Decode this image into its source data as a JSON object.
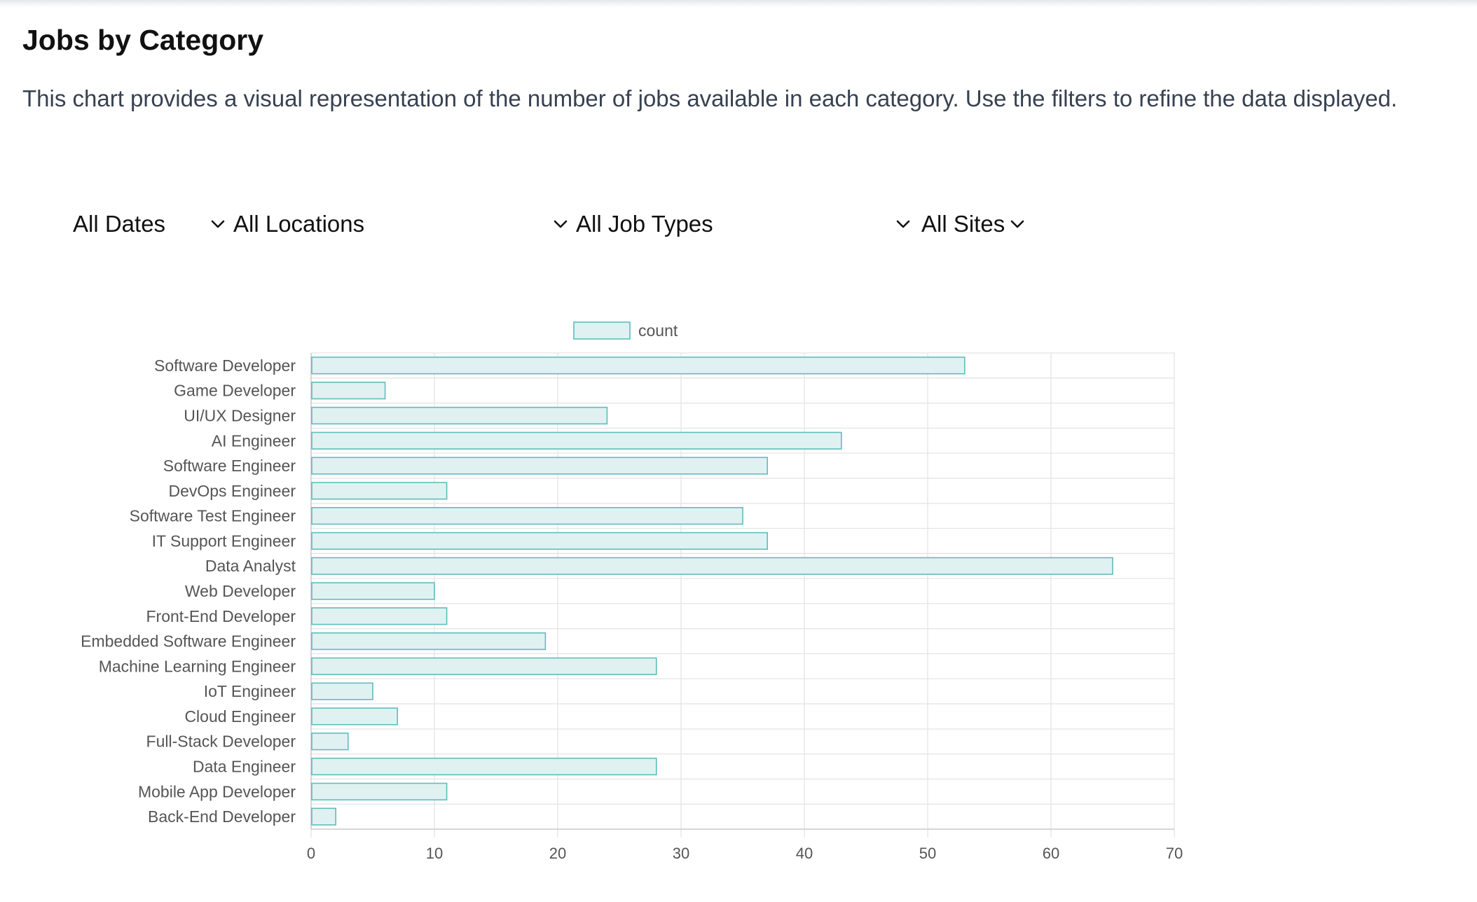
{
  "page": {
    "title": "Jobs by Category",
    "description": "This chart provides a visual representation of the number of jobs available in each category. Use the filters to refine the data displayed."
  },
  "filters": {
    "dates": "All Dates",
    "locations": "All Locations",
    "job_types": "All Job Types",
    "sites": "All Sites"
  },
  "icons": {
    "filter_toggle": "chevron-down-icon"
  },
  "colors": {
    "bar_fill": "#e0f1f1",
    "bar_border": "#5fbdbd",
    "grid": "#e5e5e5",
    "axis_text": "#555555"
  },
  "chart_data": {
    "type": "bar",
    "orientation": "horizontal",
    "categories": [
      "Software Developer",
      "Game Developer",
      "UI/UX Designer",
      "AI Engineer",
      "Software Engineer",
      "DevOps Engineer",
      "Software Test Engineer",
      "IT Support Engineer",
      "Data Analyst",
      "Web Developer",
      "Front-End Developer",
      "Embedded Software Engineer",
      "Machine Learning Engineer",
      "IoT Engineer",
      "Cloud Engineer",
      "Full-Stack Developer",
      "Data Engineer",
      "Mobile App Developer",
      "Back-End Developer"
    ],
    "series": [
      {
        "name": "count",
        "values": [
          53,
          6,
          24,
          43,
          37,
          11,
          35,
          37,
          65,
          10,
          11,
          19,
          28,
          5,
          7,
          3,
          28,
          11,
          2
        ]
      }
    ],
    "xlim": [
      0,
      70
    ],
    "xticks": [
      0,
      10,
      20,
      30,
      40,
      50,
      60,
      70
    ],
    "grid": true,
    "legend": "top-center"
  }
}
